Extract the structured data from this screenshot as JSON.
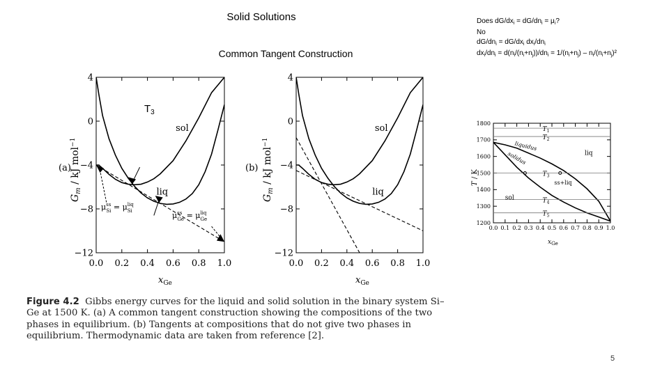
{
  "slide": {
    "title": "Solid Solutions",
    "subtitle": "Common Tangent Construction",
    "t3_main": "T",
    "t3_sub": "3",
    "page_number": "5"
  },
  "notes": {
    "line1": "Does dG/dx_i = dG/dn_i = μ_i?",
    "line2": "No",
    "line3": "dG/dn_i = dG/dx_i dx_i/dn_i",
    "line4": "dx_i/dn_i = d(n_i/(n_i+n_j))/dn_i = 1/(n_i+n_j) – n_i/(n_i+n_j)²"
  },
  "caption": {
    "label": "Figure 4.2",
    "text": "Gibbs energy curves for the liquid and solid solution in the binary system Si–Ge at 1500 K. (a) A common tangent construction showing the compositions of the two phases in equilibrium. (b) Tangents at compositions that do not give two phases in equilibrium. Thermodynamic data are taken from reference [2]."
  },
  "chart_data": [
    {
      "type": "line",
      "panel": "(a)",
      "xlabel": "x_Ge",
      "ylabel": "G_m / kJ mol⁻¹",
      "xlim": [
        0.0,
        1.0
      ],
      "ylim": [
        -12,
        4
      ],
      "xticks": [
        "0.0",
        "0.2",
        "0.4",
        "0.6",
        "0.8",
        "1.0"
      ],
      "yticks": [
        "4",
        "0",
        "−4",
        "−8",
        "−12"
      ],
      "series": [
        {
          "name": "sol",
          "x": [
            0.0,
            0.02,
            0.05,
            0.1,
            0.15,
            0.2,
            0.25,
            0.3,
            0.35,
            0.4,
            0.45,
            0.5,
            0.6,
            0.7,
            0.8,
            0.9,
            1.0
          ],
          "values": [
            -4.0,
            -4.0,
            -4.3,
            -4.85,
            -5.3,
            -5.6,
            -5.75,
            -5.8,
            -5.75,
            -5.55,
            -5.25,
            -4.8,
            -3.6,
            -1.8,
            0.3,
            2.6,
            4.0
          ]
        },
        {
          "name": "liq",
          "x": [
            0.0,
            0.02,
            0.05,
            0.1,
            0.15,
            0.2,
            0.25,
            0.3,
            0.35,
            0.4,
            0.45,
            0.5,
            0.55,
            0.6,
            0.65,
            0.7,
            0.75,
            0.8,
            0.85,
            0.9,
            0.95,
            1.0
          ],
          "values": [
            4.0,
            2.5,
            0.5,
            -1.6,
            -3.1,
            -4.3,
            -5.2,
            -5.95,
            -6.55,
            -7.0,
            -7.3,
            -7.5,
            -7.58,
            -7.55,
            -7.4,
            -7.1,
            -6.6,
            -5.8,
            -4.6,
            -3.0,
            -0.8,
            1.5
          ]
        },
        {
          "name": "common tangent",
          "x": [
            0.0,
            1.0
          ],
          "values": [
            -4.0,
            -11.0
          ]
        }
      ],
      "annotations": [
        "sol",
        "liq",
        "μ_Si^ss = μ_Si^liq",
        "μ_Ge^ss = μ_Ge^liq"
      ]
    },
    {
      "type": "line",
      "panel": "(b)",
      "xlabel": "x_Ge",
      "ylabel": "G_m / kJ mol⁻¹",
      "xlim": [
        0.0,
        1.0
      ],
      "ylim": [
        -12,
        4
      ],
      "xticks": [
        "0.0",
        "0.2",
        "0.4",
        "0.6",
        "0.8",
        "1.0"
      ],
      "yticks": [
        "4",
        "0",
        "−4",
        "−8",
        "−12"
      ],
      "series": [
        {
          "name": "sol",
          "x": [
            0.0,
            0.02,
            0.05,
            0.1,
            0.15,
            0.2,
            0.25,
            0.3,
            0.35,
            0.4,
            0.45,
            0.5,
            0.6,
            0.7,
            0.8,
            0.9,
            1.0
          ],
          "values": [
            -4.0,
            -4.0,
            -4.3,
            -4.85,
            -5.3,
            -5.6,
            -5.75,
            -5.8,
            -5.75,
            -5.55,
            -5.25,
            -4.8,
            -3.6,
            -1.8,
            0.3,
            2.6,
            4.0
          ]
        },
        {
          "name": "liq",
          "x": [
            0.0,
            0.02,
            0.05,
            0.1,
            0.15,
            0.2,
            0.25,
            0.3,
            0.35,
            0.4,
            0.45,
            0.5,
            0.55,
            0.6,
            0.65,
            0.7,
            0.75,
            0.8,
            0.85,
            0.9,
            0.95,
            1.0
          ],
          "values": [
            4.0,
            2.5,
            0.5,
            -1.6,
            -3.1,
            -4.3,
            -5.2,
            -5.95,
            -6.55,
            -7.0,
            -7.3,
            -7.5,
            -7.58,
            -7.55,
            -7.4,
            -7.1,
            -6.6,
            -5.8,
            -4.6,
            -3.0,
            -0.8,
            1.5
          ]
        },
        {
          "name": "tangent 1",
          "x": [
            0.0,
            1.0
          ],
          "values": [
            -4.5,
            -10.0
          ]
        },
        {
          "name": "tangent 2",
          "x": [
            0.0,
            0.5
          ],
          "values": [
            -1.5,
            -12.0
          ]
        }
      ],
      "annotations": [
        "sol",
        "liq"
      ]
    },
    {
      "type": "line",
      "panel": "phase-diagram",
      "xlabel": "x_Ge",
      "ylabel": "T / K",
      "xlim": [
        0.0,
        1.0
      ],
      "ylim": [
        1200,
        1800
      ],
      "xticks": [
        "0.0",
        "0.1",
        "0.2",
        "0.3",
        "0.4",
        "0.5",
        "0.6",
        "0.7",
        "0.8",
        "0.9",
        "1.0"
      ],
      "yticks": [
        "1800",
        "1700",
        "1600",
        "1500",
        "1400",
        "1300",
        "1200"
      ],
      "series": [
        {
          "name": "liquidus",
          "x": [
            0.0,
            0.1,
            0.2,
            0.3,
            0.4,
            0.5,
            0.6,
            0.7,
            0.8,
            0.9,
            1.0
          ],
          "values": [
            1685,
            1670,
            1650,
            1620,
            1590,
            1555,
            1515,
            1465,
            1405,
            1330,
            1210
          ]
        },
        {
          "name": "solidus",
          "x": [
            0.0,
            0.1,
            0.2,
            0.3,
            0.4,
            0.5,
            0.6,
            0.7,
            0.8,
            0.9,
            1.0
          ],
          "values": [
            1685,
            1610,
            1535,
            1470,
            1415,
            1365,
            1325,
            1290,
            1260,
            1235,
            1210
          ]
        }
      ],
      "isotherms": [
        {
          "label": "T1",
          "value": 1770
        },
        {
          "label": "T2",
          "value": 1720
        },
        {
          "label": "T3",
          "value": 1500
        },
        {
          "label": "T4",
          "value": 1340
        },
        {
          "label": "T5",
          "value": 1260
        }
      ],
      "region_labels": [
        "liquidus",
        "solidus",
        "liq",
        "ss+liq",
        "sol"
      ]
    }
  ]
}
